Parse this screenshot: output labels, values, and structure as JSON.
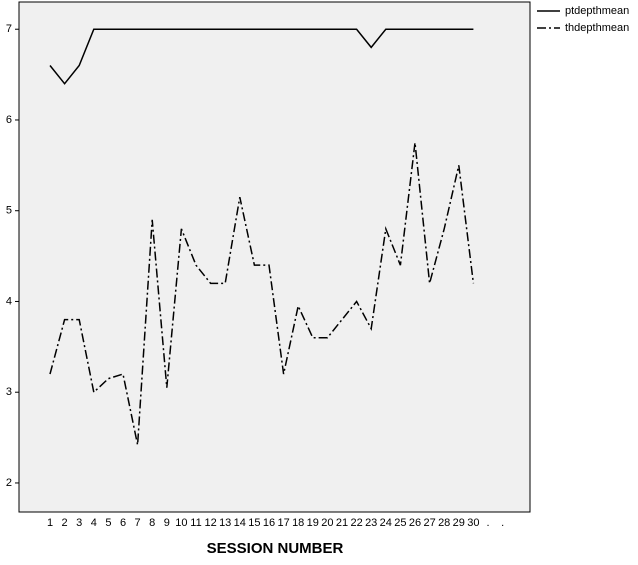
{
  "chart_data": {
    "type": "line",
    "x_label": "SESSION NUMBER",
    "categories": [
      "1",
      "2",
      "3",
      "4",
      "5",
      "6",
      "7",
      "8",
      "9",
      "10",
      "11",
      "12",
      "13",
      "14",
      "15",
      "16",
      "17",
      "18",
      "19",
      "20",
      "21",
      "22",
      "23",
      "24",
      "25",
      "26",
      "27",
      "28",
      "29",
      "30",
      ".",
      "."
    ],
    "series": [
      {
        "name": "ptdepthmean",
        "color": "#000000",
        "line_style": "solid",
        "values": [
          6.6,
          6.4,
          6.6,
          7,
          7,
          7,
          7,
          7,
          7,
          7,
          7,
          7,
          7,
          7,
          7,
          7,
          7,
          7,
          7,
          7,
          7,
          7,
          6.8,
          7,
          7,
          7,
          7,
          7,
          7,
          7,
          null,
          null
        ]
      },
      {
        "name": "thdepthmean",
        "color": "#000000",
        "line_style": "dashdot",
        "values": [
          3.2,
          3.8,
          3.8,
          3.0,
          3.15,
          3.2,
          2.42,
          4.9,
          3.05,
          4.8,
          4.4,
          4.2,
          4.2,
          5.15,
          4.4,
          4.4,
          3.2,
          3.95,
          3.6,
          3.6,
          3.8,
          4.0,
          3.7,
          4.8,
          4.4,
          5.75,
          4.2,
          4.8,
          5.5,
          4.2,
          null,
          null
        ]
      }
    ],
    "ylim": [
      1.68,
      7.3
    ],
    "yticks": [
      2,
      3,
      4,
      5,
      6,
      7
    ],
    "grid": false,
    "legend": "top-right"
  }
}
